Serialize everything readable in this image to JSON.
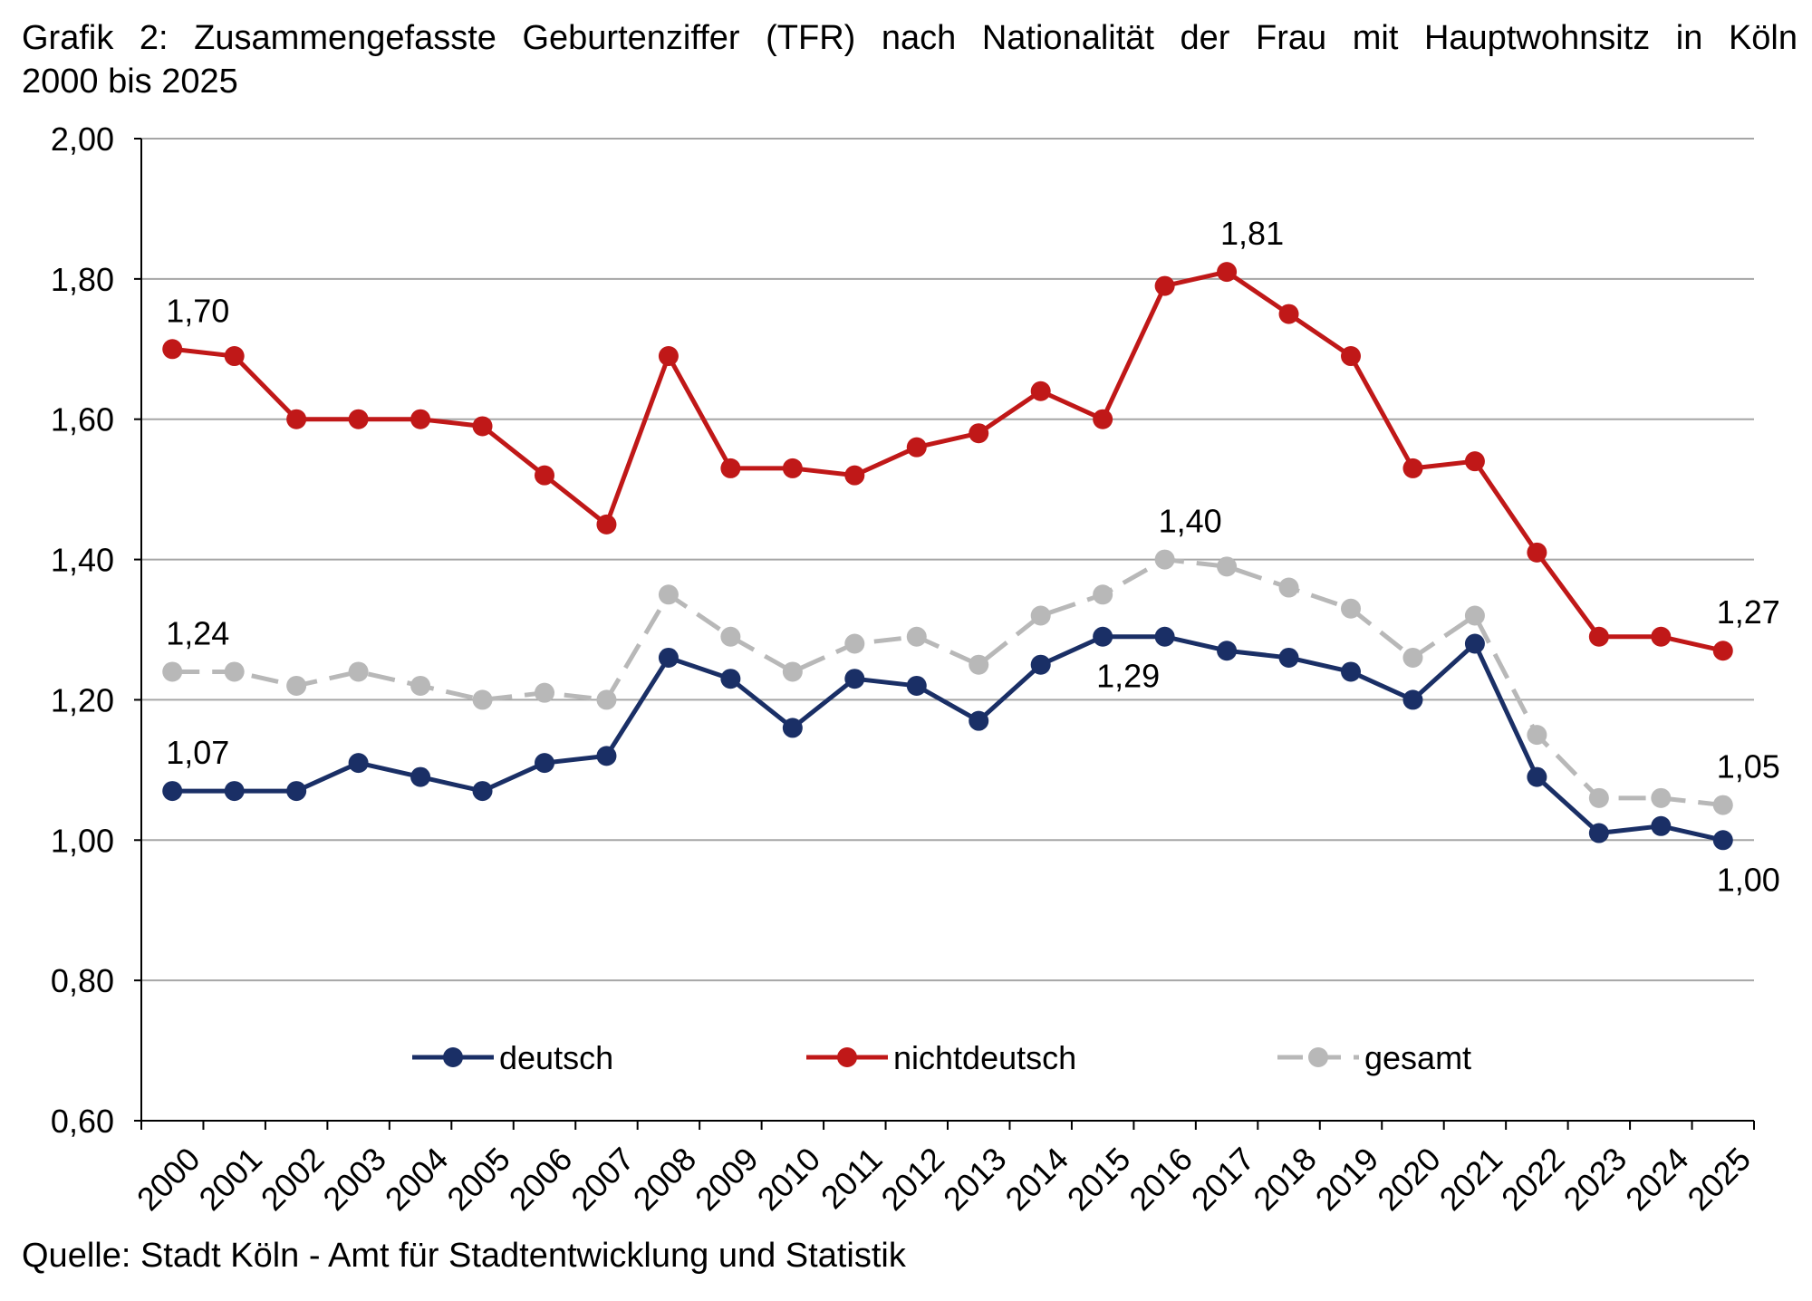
{
  "title_line1": "Grafik 2: Zusammengefasste  Geburtenziffer  (TFR)  nach Nationalität  der Frau mit Hauptwohnsitz  in Köln",
  "title_line2": "2000 bis 2025",
  "source": "Quelle:  Stadt Köln - Amt für Stadtentwicklung  und Statistik",
  "chart_data": {
    "type": "line",
    "x": [
      "2000",
      "2001",
      "2002",
      "2003",
      "2004",
      "2005",
      "2006",
      "2007",
      "2008",
      "2009",
      "2010",
      "2011",
      "2012",
      "2013",
      "2014",
      "2015",
      "2016",
      "2017",
      "2018",
      "2019",
      "2020",
      "2021",
      "2022",
      "2023",
      "2024",
      "2025"
    ],
    "ylim": [
      0.6,
      2.0
    ],
    "yticks": [
      "0,60",
      "0,80",
      "1,00",
      "1,20",
      "1,40",
      "1,60",
      "1,80",
      "2,00"
    ],
    "ytick_values": [
      0.6,
      0.8,
      1.0,
      1.2,
      1.4,
      1.6,
      1.8,
      2.0
    ],
    "grid": true,
    "legend_position": "bottom-inside",
    "series": [
      {
        "name": "deutsch",
        "color": "#1a2f66",
        "dash": false,
        "values": [
          1.07,
          1.07,
          1.07,
          1.11,
          1.09,
          1.07,
          1.11,
          1.12,
          1.26,
          1.23,
          1.16,
          1.23,
          1.22,
          1.17,
          1.25,
          1.29,
          1.29,
          1.27,
          1.26,
          1.24,
          1.2,
          1.28,
          1.09,
          1.01,
          1.02,
          1.0
        ],
        "labels": [
          {
            "index": 0,
            "text": "1,07",
            "pos": "above"
          },
          {
            "index": 15,
            "text": "1,29",
            "pos": "below"
          },
          {
            "index": 25,
            "text": "1,00",
            "pos": "below"
          }
        ]
      },
      {
        "name": "nichtdeutsch",
        "color": "#c01818",
        "dash": false,
        "values": [
          1.7,
          1.69,
          1.6,
          1.6,
          1.6,
          1.59,
          1.52,
          1.45,
          1.69,
          1.53,
          1.53,
          1.52,
          1.56,
          1.58,
          1.64,
          1.6,
          1.79,
          1.81,
          1.75,
          1.69,
          1.53,
          1.54,
          1.41,
          1.29,
          1.29,
          1.27
        ],
        "labels": [
          {
            "index": 0,
            "text": "1,70",
            "pos": "above"
          },
          {
            "index": 17,
            "text": "1,81",
            "pos": "above"
          },
          {
            "index": 25,
            "text": "1,27",
            "pos": "above"
          }
        ]
      },
      {
        "name": "gesamt",
        "color": "#b8b8b8",
        "dash": true,
        "values": [
          1.24,
          1.24,
          1.22,
          1.24,
          1.22,
          1.2,
          1.21,
          1.2,
          1.35,
          1.29,
          1.24,
          1.28,
          1.29,
          1.25,
          1.32,
          1.35,
          1.4,
          1.39,
          1.36,
          1.33,
          1.26,
          1.32,
          1.15,
          1.06,
          1.06,
          1.05
        ],
        "labels": [
          {
            "index": 0,
            "text": "1,24",
            "pos": "above"
          },
          {
            "index": 16,
            "text": "1,40",
            "pos": "above"
          },
          {
            "index": 25,
            "text": "1,05",
            "pos": "above"
          }
        ]
      }
    ]
  }
}
